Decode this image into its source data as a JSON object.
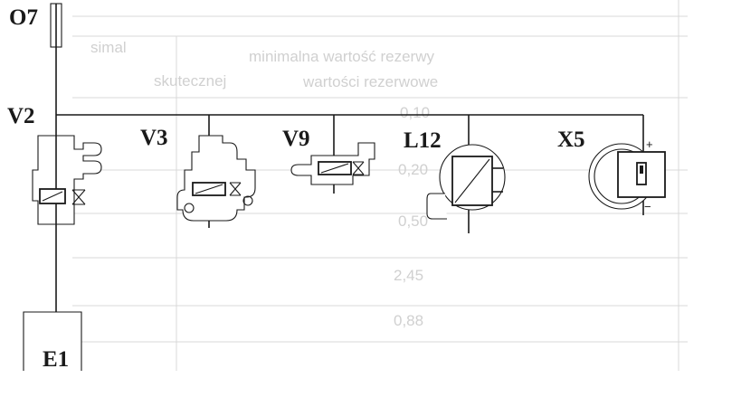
{
  "diagram": {
    "components": {
      "fuse": "O7",
      "valve_main": "V2",
      "valve_3": "V3",
      "valve_9": "V9",
      "motor": "L12",
      "connector": "X5",
      "unit": "E1"
    },
    "polarity": {
      "plus": "+",
      "minus": "−"
    },
    "background_table": {
      "rows": [
        "minimalna wartość rezerwy",
        "wartości rezerwowe",
        "0,10",
        "0,20",
        "0,50",
        "2,45",
        "0,88"
      ],
      "side_texts": [
        "simal",
        "skutecznej"
      ]
    }
  }
}
